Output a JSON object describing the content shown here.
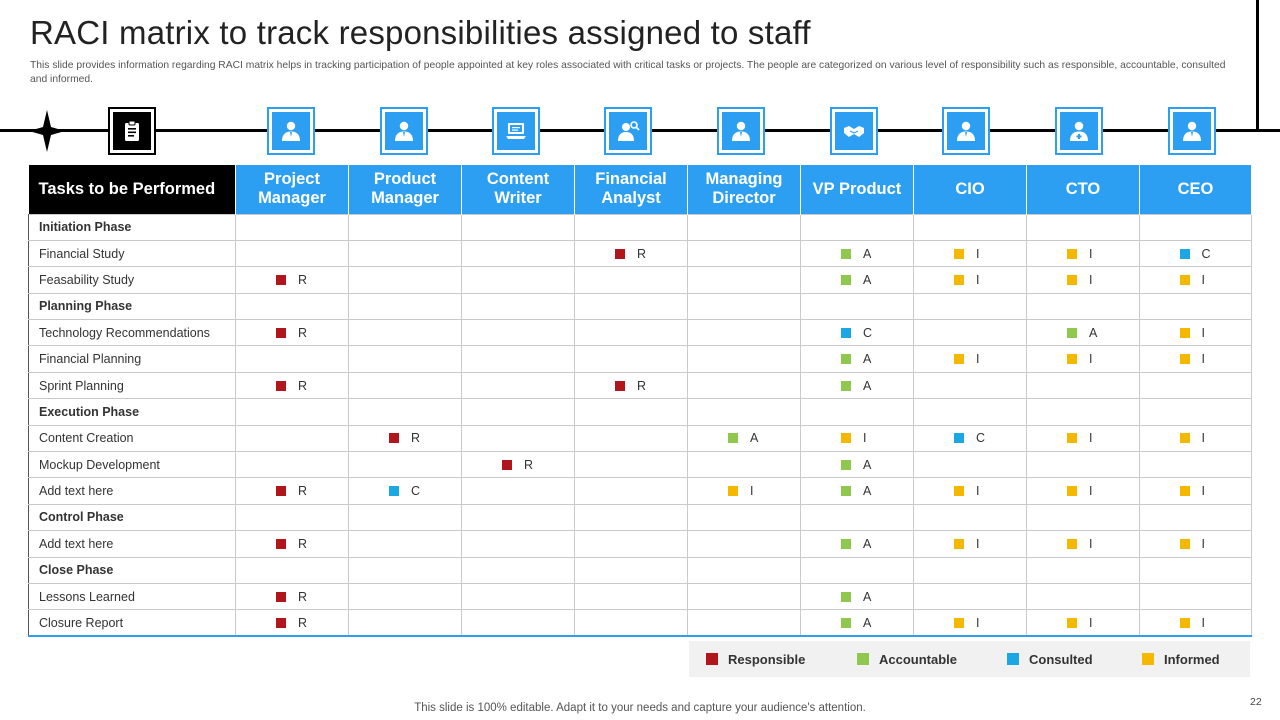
{
  "slide": {
    "title": "RACI matrix to track responsibilities assigned to staff",
    "subtitle": "This slide provides information regarding RACI matrix helps in tracking participation of people appointed at key roles associated with critical tasks or projects. The people are categorized on various level of responsibility such as responsible, accountable, consulted and informed.",
    "footer": "This slide is 100% editable. Adapt it to your needs and capture your audience's attention.",
    "page_number": "22"
  },
  "colors": {
    "R": "#b0161b",
    "A": "#8fc74f",
    "C": "#1ba6e4",
    "I": "#f5b800",
    "header_blue": "#2d9ff2"
  },
  "icons": [
    {
      "name": "clipboard-icon",
      "style": "black"
    },
    {
      "name": "person-icon",
      "style": "blue"
    },
    {
      "name": "person-icon",
      "style": "blue"
    },
    {
      "name": "laptop-writer-icon",
      "style": "blue"
    },
    {
      "name": "analyst-icon",
      "style": "blue"
    },
    {
      "name": "person-icon",
      "style": "blue"
    },
    {
      "name": "handshake-icon",
      "style": "blue"
    },
    {
      "name": "person-icon",
      "style": "blue"
    },
    {
      "name": "doctor-icon",
      "style": "blue"
    },
    {
      "name": "person-icon",
      "style": "blue"
    }
  ],
  "table": {
    "task_header": "Tasks to be Performed",
    "roles": [
      "Project Manager",
      "Product Manager",
      "Content Writer",
      "Financial Analyst",
      "Managing Director",
      "VP Product",
      "CIO",
      "CTO",
      "CEO"
    ],
    "rows": [
      {
        "task": "Initiation Phase",
        "phase": true,
        "cells": [
          "",
          "",
          "",
          "",
          "",
          "",
          "",
          "",
          ""
        ]
      },
      {
        "task": "Financial Study",
        "phase": false,
        "cells": [
          "",
          "",
          "",
          "R",
          "",
          "A",
          "I",
          "I",
          "C"
        ]
      },
      {
        "task": "Feasability Study",
        "phase": false,
        "cells": [
          "R",
          "",
          "",
          "",
          "",
          "A",
          "I",
          "I",
          "I"
        ]
      },
      {
        "task": "Planning Phase",
        "phase": true,
        "cells": [
          "",
          "",
          "",
          "",
          "",
          "",
          "",
          "",
          ""
        ]
      },
      {
        "task": "Technology Recommendations",
        "phase": false,
        "cells": [
          "R",
          "",
          "",
          "",
          "",
          "C",
          "",
          "A",
          "I"
        ]
      },
      {
        "task": "Financial Planning",
        "phase": false,
        "cells": [
          "",
          "",
          "",
          "",
          "",
          "A",
          "I",
          "I",
          "I"
        ]
      },
      {
        "task": "Sprint Planning",
        "phase": false,
        "cells": [
          "R",
          "",
          "",
          "R",
          "",
          "A",
          "",
          "",
          ""
        ]
      },
      {
        "task": "Execution Phase",
        "phase": true,
        "cells": [
          "",
          "",
          "",
          "",
          "",
          "",
          "",
          "",
          ""
        ]
      },
      {
        "task": "Content Creation",
        "phase": false,
        "cells": [
          "",
          "R",
          "",
          "",
          "A",
          "I",
          "C",
          "I",
          "I"
        ]
      },
      {
        "task": "Mockup Development",
        "phase": false,
        "cells": [
          "",
          "",
          "R",
          "",
          "",
          "A",
          "",
          "",
          ""
        ]
      },
      {
        "task": "Add text here",
        "phase": false,
        "cells": [
          "R",
          "C",
          "",
          "",
          "I",
          "A",
          "I",
          "I",
          "I"
        ]
      },
      {
        "task": "Control Phase",
        "phase": true,
        "cells": [
          "",
          "",
          "",
          "",
          "",
          "",
          "",
          "",
          ""
        ]
      },
      {
        "task": "Add text here",
        "phase": false,
        "cells": [
          "R",
          "",
          "",
          "",
          "",
          "A",
          "I",
          "I",
          "I"
        ]
      },
      {
        "task": "Close Phase",
        "phase": true,
        "cells": [
          "",
          "",
          "",
          "",
          "",
          "",
          "",
          "",
          ""
        ]
      },
      {
        "task": "Lessons Learned",
        "phase": false,
        "cells": [
          "R",
          "",
          "",
          "",
          "",
          "A",
          "",
          "",
          ""
        ]
      },
      {
        "task": "Closure Report",
        "phase": false,
        "cells": [
          "R",
          "",
          "",
          "",
          "",
          "A",
          "I",
          "I",
          "I"
        ]
      }
    ]
  },
  "legend": [
    {
      "key": "R",
      "label": "Responsible"
    },
    {
      "key": "A",
      "label": "Accountable"
    },
    {
      "key": "C",
      "label": "Consulted"
    },
    {
      "key": "I",
      "label": "Informed"
    }
  ]
}
